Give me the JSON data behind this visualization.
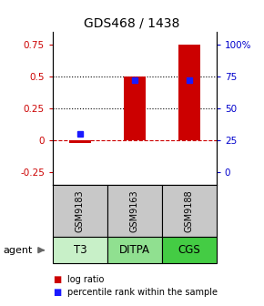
{
  "title": "GDS468 / 1438",
  "samples": [
    "GSM9183",
    "GSM9163",
    "GSM9188"
  ],
  "agents": [
    "T3",
    "DITPA",
    "CGS"
  ],
  "log_ratios": [
    -0.02,
    0.5,
    0.75
  ],
  "percentile_ranks_pct": [
    30,
    72,
    72
  ],
  "ylim": [
    -0.35,
    0.85
  ],
  "left_ticks": [
    -0.25,
    0.0,
    0.25,
    0.5,
    0.75
  ],
  "left_tick_labels": [
    "-0.25",
    "0",
    "0.25",
    "0.5",
    "0.75"
  ],
  "right_ticks_pct": [
    0,
    25,
    50,
    75,
    100
  ],
  "right_tick_labels": [
    "0",
    "25",
    "50",
    "75",
    "100%"
  ],
  "hlines": [
    0.5,
    0.25
  ],
  "bar_color": "#cc0000",
  "dot_color": "#1a1aff",
  "zero_line_color": "#cc0000",
  "sample_bg": "#c8c8c8",
  "agent_colors": [
    "#c8f0c8",
    "#90e090",
    "#44cc44"
  ],
  "title_fontsize": 10,
  "tick_fontsize": 7.5,
  "sample_fontsize": 7,
  "agent_fontsize": 8.5,
  "legend_fontsize": 7,
  "bar_width": 0.4
}
